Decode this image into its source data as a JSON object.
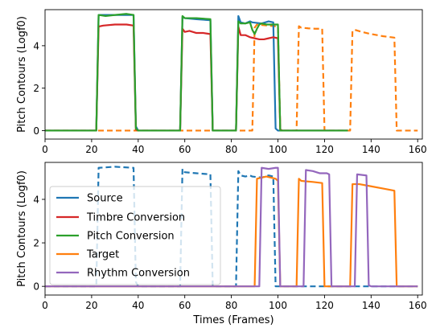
{
  "chart_data": [
    {
      "type": "line",
      "xlabel": "",
      "ylabel": "Pitch Contours (Logf0)",
      "xlim": [
        0,
        162
      ],
      "ylim": [
        -0.4,
        5.7
      ],
      "xticks": [
        0,
        20,
        40,
        60,
        80,
        100,
        120,
        140,
        160
      ],
      "yticks": [
        0,
        2,
        4
      ],
      "legend": "none",
      "series": [
        {
          "name": "Target",
          "color": "#ff7f0e",
          "dash": "dashed",
          "x": [
            0,
            89,
            90,
            91,
            96,
            100,
            101,
            108,
            109,
            110,
            113,
            116,
            119,
            120,
            131,
            132,
            133,
            136,
            140,
            145,
            150,
            151,
            160
          ],
          "y": [
            0,
            0,
            4.85,
            5.0,
            4.95,
            4.9,
            0,
            0,
            4.92,
            4.85,
            4.82,
            4.8,
            4.8,
            0,
            0,
            4.7,
            4.75,
            4.65,
            4.55,
            4.45,
            4.38,
            0,
            0
          ]
        },
        {
          "name": "Source",
          "color": "#1f77b4",
          "dash": "solid",
          "x": [
            0,
            22,
            23,
            30,
            38,
            39,
            40,
            58,
            59,
            60,
            65,
            71,
            72,
            82,
            83,
            84,
            86,
            88,
            89,
            93,
            96,
            98,
            99,
            100,
            130
          ],
          "y": [
            0,
            0,
            5.45,
            5.45,
            5.45,
            0.2,
            0,
            0,
            5.35,
            5.3,
            5.25,
            5.2,
            0,
            0,
            5.4,
            5.1,
            5.05,
            5.15,
            5.1,
            5.05,
            5.15,
            5.1,
            0.1,
            0,
            0
          ]
        },
        {
          "name": "Timbre Conversion",
          "color": "#d62728",
          "dash": "solid",
          "x": [
            0,
            22,
            23,
            25,
            30,
            35,
            38,
            39,
            40,
            58,
            59,
            60,
            62,
            65,
            68,
            71,
            72,
            82,
            83,
            84,
            86,
            88,
            90,
            92,
            94,
            96,
            98,
            100,
            101,
            102,
            130
          ],
          "y": [
            0,
            0,
            4.9,
            4.95,
            5.0,
            5.0,
            4.95,
            0.05,
            0,
            0,
            4.8,
            4.65,
            4.7,
            4.6,
            4.6,
            4.55,
            0,
            0,
            4.9,
            4.5,
            4.5,
            4.4,
            4.35,
            4.3,
            4.3,
            4.35,
            4.4,
            4.35,
            0.05,
            0,
            0
          ]
        },
        {
          "name": "Pitch Conversion",
          "color": "#2ca02c",
          "dash": "solid",
          "x": [
            0,
            22,
            23,
            26,
            30,
            35,
            38,
            39,
            40,
            58,
            59,
            60,
            65,
            71,
            72,
            82,
            83,
            84,
            86,
            88,
            89,
            90,
            91,
            92,
            93,
            95,
            98,
            100,
            101,
            130
          ],
          "y": [
            0,
            0,
            5.45,
            5.4,
            5.45,
            5.5,
            5.45,
            0.1,
            0,
            0,
            5.4,
            5.3,
            5.3,
            5.25,
            0,
            0,
            5.15,
            5.05,
            5.05,
            5.1,
            4.75,
            4.55,
            4.8,
            5.0,
            5.05,
            5.0,
            5.0,
            5.0,
            0,
            0
          ]
        }
      ]
    },
    {
      "type": "line",
      "xlabel": "Times (Frames)",
      "ylabel": "Pitch Contours (Logf0)",
      "xlim": [
        0,
        162
      ],
      "ylim": [
        -0.4,
        5.7
      ],
      "xticks": [
        0,
        20,
        40,
        60,
        80,
        100,
        120,
        140,
        160
      ],
      "yticks": [
        0,
        2,
        4
      ],
      "legend": "center-left",
      "legend_entries": [
        "Source",
        "Timbre Conversion",
        "Pitch Conversion",
        "Target",
        "Rhythm Conversion"
      ],
      "series": [
        {
          "name": "Source",
          "color": "#1f77b4",
          "dash": "dashed",
          "x": [
            0,
            22,
            23,
            30,
            38,
            39,
            40,
            58,
            59,
            60,
            65,
            71,
            72,
            82,
            83,
            84,
            86,
            88,
            89,
            93,
            96,
            98,
            99,
            100,
            160
          ],
          "y": [
            0,
            0,
            5.45,
            5.5,
            5.45,
            0.2,
            0,
            0,
            5.4,
            5.25,
            5.2,
            5.15,
            0,
            0,
            5.3,
            5.1,
            5.05,
            5.1,
            5.05,
            5.0,
            5.1,
            5.05,
            0,
            0,
            0
          ]
        },
        {
          "name": "Target",
          "color": "#ff7f0e",
          "dash": "solid",
          "x": [
            0,
            90,
            91,
            95,
            99,
            100,
            101,
            108,
            109,
            110,
            115,
            119,
            120,
            131,
            132,
            135,
            140,
            145,
            150,
            151,
            160
          ],
          "y": [
            0,
            0,
            4.95,
            5.05,
            4.95,
            4.85,
            0,
            0,
            4.95,
            4.85,
            4.8,
            4.75,
            0,
            0,
            4.7,
            4.7,
            4.6,
            4.5,
            4.4,
            0,
            0
          ]
        },
        {
          "name": "Rhythm Conversion",
          "color": "#9467bd",
          "dash": "solid",
          "x": [
            0,
            92,
            93,
            96,
            99,
            100,
            101,
            111,
            112,
            115,
            118,
            121,
            122,
            123,
            133,
            134,
            138,
            139,
            140,
            160
          ],
          "y": [
            0,
            0,
            5.45,
            5.4,
            5.45,
            5.45,
            0,
            0,
            5.35,
            5.3,
            5.2,
            5.2,
            5.15,
            0,
            0,
            5.15,
            5.1,
            0.05,
            0,
            0
          ]
        }
      ]
    }
  ]
}
